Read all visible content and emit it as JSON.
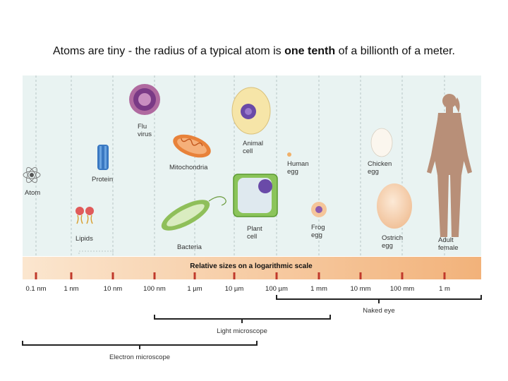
{
  "headline": {
    "prefix": "Atoms are tiny - the radius of a typical atom is ",
    "emphasis": "one tenth",
    "suffix": " of a billionth of a meter."
  },
  "scale_banner": "Relative sizes on a logarithmic scale",
  "ticks": [
    "0.1 nm",
    "1 nm",
    "10 nm",
    "100 nm",
    "1 µm",
    "10 µm",
    "100 µm",
    "1 mm",
    "10 mm",
    "100 mm",
    "1 m"
  ],
  "ranges": {
    "naked_eye": "Naked eye",
    "light_microscope": "Light microscope",
    "electron_microscope": "Electron microscope"
  },
  "organisms": {
    "atom": "Atom",
    "lipids": "Lipids",
    "protein": "Protein",
    "flu_virus": [
      "Flu",
      "virus"
    ],
    "mitochondria": "Mitochondria",
    "bacteria": "Bacteria",
    "animal_cell": [
      "Animal",
      "cell"
    ],
    "plant_cell": [
      "Plant",
      "cell"
    ],
    "human_egg": [
      "Human",
      "egg"
    ],
    "frog_egg": [
      "Frog",
      "egg"
    ],
    "chicken_egg": [
      "Chicken",
      "egg"
    ],
    "ostrich_egg": [
      "Ostrich",
      "egg"
    ],
    "adult_female": [
      "Adult",
      "female"
    ]
  },
  "colors": {
    "panel_bg": "#e9f3f2",
    "banner_start": "#fbe6cf",
    "banner_end": "#f2b27a",
    "tick_mark": "#c0392b"
  }
}
